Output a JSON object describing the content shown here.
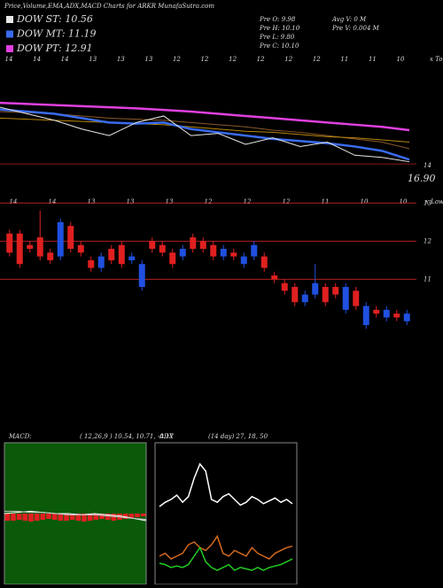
{
  "header": {
    "title": "Price,Volume,EMA,ADX,MACD Charts for ARKR MunafaSutra.com",
    "legend": [
      {
        "label": "DOW ST: 10.56",
        "color": "#e8e8e8"
      },
      {
        "label": "DOW MT: 11.19",
        "color": "#3a6cf0"
      },
      {
        "label": "DOW PT: 12.91",
        "color": "#e040e0"
      }
    ],
    "stats_left": [
      "Pre  O: 9.98",
      "Pre  H: 10.10",
      "Pre  L: 9.80",
      "Pre  C: 10.10"
    ],
    "stats_right": [
      "Avg V: 0  M",
      "Pre  V: 0.004  M"
    ]
  },
  "chart_data": [
    {
      "type": "line",
      "x_labels": [
        "14",
        "14",
        "14",
        "13",
        "13",
        "13",
        "12",
        "12",
        "12",
        "12",
        "12",
        "12",
        "11",
        "11",
        "10"
      ],
      "corner_label": "x Topa",
      "ylim": [
        13.6,
        19
      ],
      "yticks": [
        14
      ],
      "annotation": "16.90",
      "series": [
        {
          "color": "#e040e0",
          "width": 2.5,
          "values": [
            16.8,
            16.75,
            16.7,
            16.65,
            16.6,
            16.55,
            16.48,
            16.4,
            16.3,
            16.2,
            16.1,
            16.0,
            15.9,
            15.8,
            15.7,
            15.55
          ]
        },
        {
          "color": "#8b5a2b",
          "width": 1,
          "values": [
            16.4,
            16.35,
            16.3,
            16.2,
            16.1,
            16.05,
            16.0,
            15.9,
            15.8,
            15.7,
            15.55,
            15.45,
            15.3,
            15.15,
            15.0,
            14.7
          ]
        },
        {
          "color": "#b8860b",
          "width": 1,
          "values": [
            16.1,
            16.05,
            16.0,
            15.95,
            15.9,
            15.85,
            15.8,
            15.7,
            15.6,
            15.5,
            15.45,
            15.35,
            15.25,
            15.2,
            15.1,
            15.0
          ]
        },
        {
          "color": "#3a6cf0",
          "width": 2.5,
          "values": [
            16.5,
            16.4,
            16.3,
            16.1,
            15.9,
            15.85,
            15.9,
            15.6,
            15.45,
            15.3,
            15.15,
            15.05,
            14.95,
            14.8,
            14.6,
            14.2
          ]
        },
        {
          "color": "#e8e8e8",
          "width": 1,
          "values": [
            16.6,
            16.3,
            16.0,
            15.6,
            15.3,
            15.9,
            16.2,
            15.3,
            15.4,
            14.9,
            15.2,
            14.8,
            15.0,
            14.4,
            14.3,
            14.1
          ]
        }
      ]
    },
    {
      "type": "candlestick",
      "x_labels": [
        "14",
        "14",
        "13",
        "13",
        "13",
        "12",
        "12",
        "12",
        "11",
        "10",
        "10"
      ],
      "corner_label": "x Lowes",
      "ylim": [
        9.5,
        13.1
      ],
      "yticks": [
        11,
        12,
        13
      ],
      "grid_color": "#b02020",
      "up_color": "#2050e0",
      "down_color": "#e02020",
      "open": [
        12.2,
        12.2,
        11.9,
        12.1,
        11.7,
        11.6,
        12.4,
        11.9,
        11.5,
        11.3,
        11.8,
        11.9,
        11.5,
        10.8,
        12.0,
        11.9,
        11.7,
        11.6,
        12.1,
        12.0,
        11.9,
        11.6,
        11.7,
        11.4,
        11.6,
        11.6,
        11.1,
        10.9,
        10.8,
        10.4,
        10.6,
        10.8,
        10.8,
        10.2,
        10.7,
        9.8,
        10.2,
        10.0,
        10.1,
        9.9
      ],
      "close": [
        11.7,
        11.4,
        11.8,
        11.6,
        11.5,
        12.5,
        11.8,
        11.7,
        11.3,
        11.6,
        11.5,
        11.4,
        11.6,
        11.4,
        11.8,
        11.7,
        11.4,
        11.8,
        11.8,
        11.8,
        11.6,
        11.8,
        11.6,
        11.6,
        11.9,
        11.3,
        11.0,
        10.7,
        10.4,
        10.6,
        10.9,
        10.4,
        10.6,
        10.8,
        10.3,
        10.3,
        10.1,
        10.2,
        10.0,
        10.1
      ],
      "high": [
        12.3,
        12.3,
        12.0,
        12.8,
        11.8,
        12.6,
        12.5,
        12.0,
        11.6,
        11.7,
        11.9,
        12.0,
        11.7,
        11.5,
        12.1,
        12.0,
        11.8,
        11.9,
        12.2,
        12.1,
        12.0,
        11.9,
        11.8,
        11.7,
        12.0,
        11.7,
        11.2,
        11.0,
        10.9,
        10.7,
        11.4,
        10.9,
        10.9,
        10.9,
        10.8,
        10.4,
        10.3,
        10.3,
        10.2,
        10.2
      ],
      "low": [
        11.6,
        11.3,
        11.7,
        11.5,
        11.4,
        11.5,
        11.7,
        11.6,
        11.2,
        11.2,
        11.4,
        11.3,
        11.4,
        10.7,
        11.7,
        11.6,
        11.3,
        11.5,
        11.7,
        11.7,
        11.5,
        11.5,
        11.5,
        11.3,
        11.5,
        11.2,
        10.9,
        10.6,
        10.3,
        10.3,
        10.5,
        10.3,
        10.5,
        10.1,
        10.2,
        9.7,
        10.0,
        9.9,
        9.9,
        9.8
      ]
    },
    {
      "type": "macd",
      "label": "MACD:",
      "params": "( 12,26,9 ) 10.54, 10.71, -0.17",
      "background": "#0a5a0a",
      "ylim": [
        8,
        14
      ],
      "y2lim": [
        -4,
        4
      ],
      "hist_color": "#e02020",
      "series": [
        {
          "color": "#ffffff",
          "values": [
            11.0,
            11.05,
            11.1,
            11.05,
            11.0,
            11.0,
            10.95,
            11.0,
            10.95,
            10.9,
            10.8,
            10.7
          ]
        },
        {
          "color": "#c8c8c8",
          "values": [
            11.1,
            11.1,
            11.05,
            11.05,
            11.0,
            10.95,
            10.95,
            10.95,
            10.9,
            10.85,
            10.8,
            10.75
          ]
        }
      ],
      "histogram": [
        -0.4,
        -0.4,
        -0.35,
        -0.4,
        -0.45,
        -0.4,
        -0.35,
        -0.3,
        -0.35,
        -0.4,
        -0.4,
        -0.35,
        -0.4,
        -0.45,
        -0.4,
        -0.35,
        -0.3,
        -0.35,
        -0.4,
        -0.35,
        -0.3,
        -0.25,
        -0.2,
        -0.15
      ]
    },
    {
      "type": "adx",
      "label": "ADX",
      "params": "(14  day) 27, 18, 50",
      "background": "#000000",
      "ylim": [
        0,
        100
      ],
      "series": [
        {
          "color": "#ffffff",
          "values": [
            55,
            58,
            60,
            63,
            58,
            62,
            75,
            85,
            80,
            60,
            58,
            62,
            64,
            60,
            56,
            58,
            62,
            60,
            57,
            59,
            61,
            58,
            60,
            57
          ]
        },
        {
          "color": "#d2691e",
          "values": [
            20,
            22,
            18,
            20,
            22,
            28,
            30,
            26,
            24,
            28,
            34,
            22,
            20,
            24,
            22,
            20,
            26,
            22,
            20,
            18,
            22,
            24,
            26,
            27
          ]
        },
        {
          "color": "#22cc22",
          "values": [
            15,
            14,
            12,
            13,
            12,
            14,
            20,
            26,
            16,
            12,
            10,
            12,
            14,
            10,
            12,
            11,
            10,
            12,
            10,
            12,
            13,
            14,
            16,
            18
          ]
        }
      ]
    }
  ]
}
